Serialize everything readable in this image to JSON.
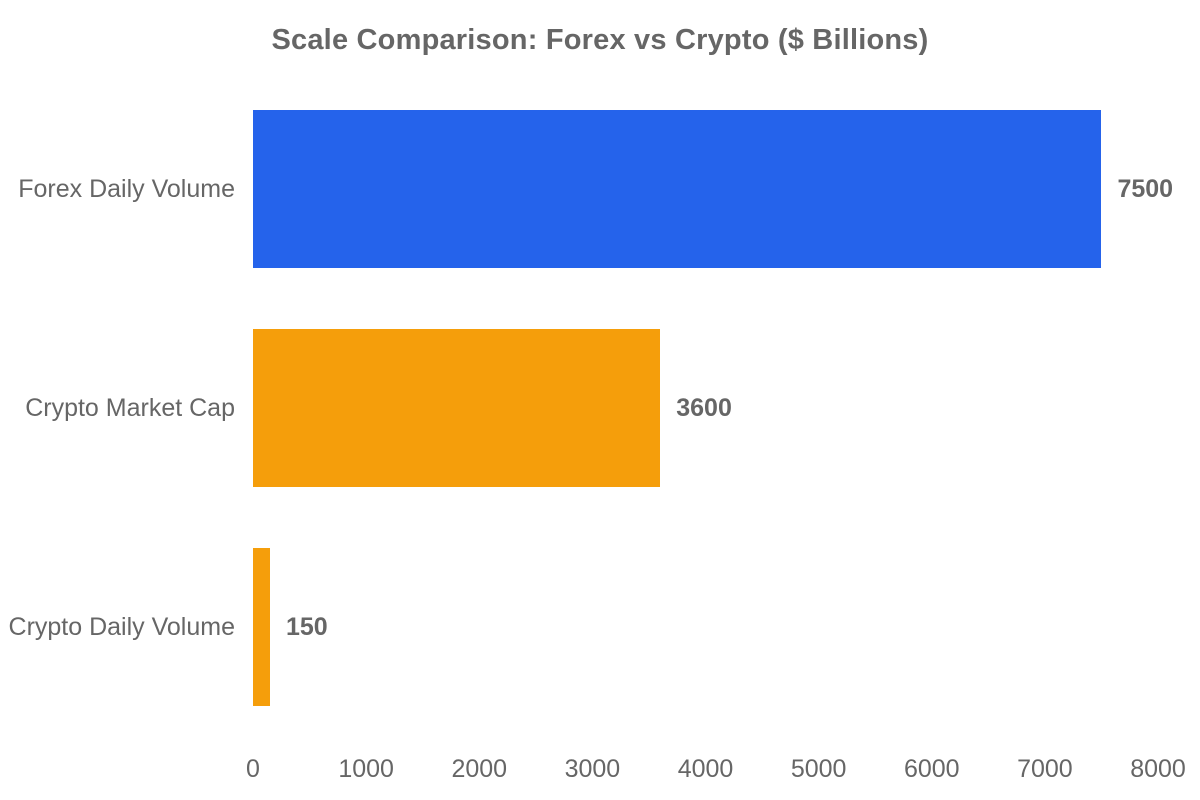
{
  "chart_data": {
    "type": "bar",
    "orientation": "horizontal",
    "title": "Scale Comparison: Forex vs Crypto ($ Billions)",
    "categories": [
      "Forex Daily Volume",
      "Crypto Market Cap",
      "Crypto Daily Volume"
    ],
    "values": [
      7500,
      3600,
      150
    ],
    "value_labels": [
      "7500",
      "3600",
      "150"
    ],
    "bar_colors": [
      "#2563EB",
      "#F59E0B",
      "#F59E0B"
    ],
    "xlabel": "",
    "ylabel": "",
    "xlim": [
      0,
      8000
    ],
    "x_ticks": [
      0,
      1000,
      2000,
      3000,
      4000,
      5000,
      6000,
      7000,
      8000
    ],
    "grid": false,
    "legend": false,
    "text_color": "#666666",
    "background_color": "#FFFFFF"
  }
}
